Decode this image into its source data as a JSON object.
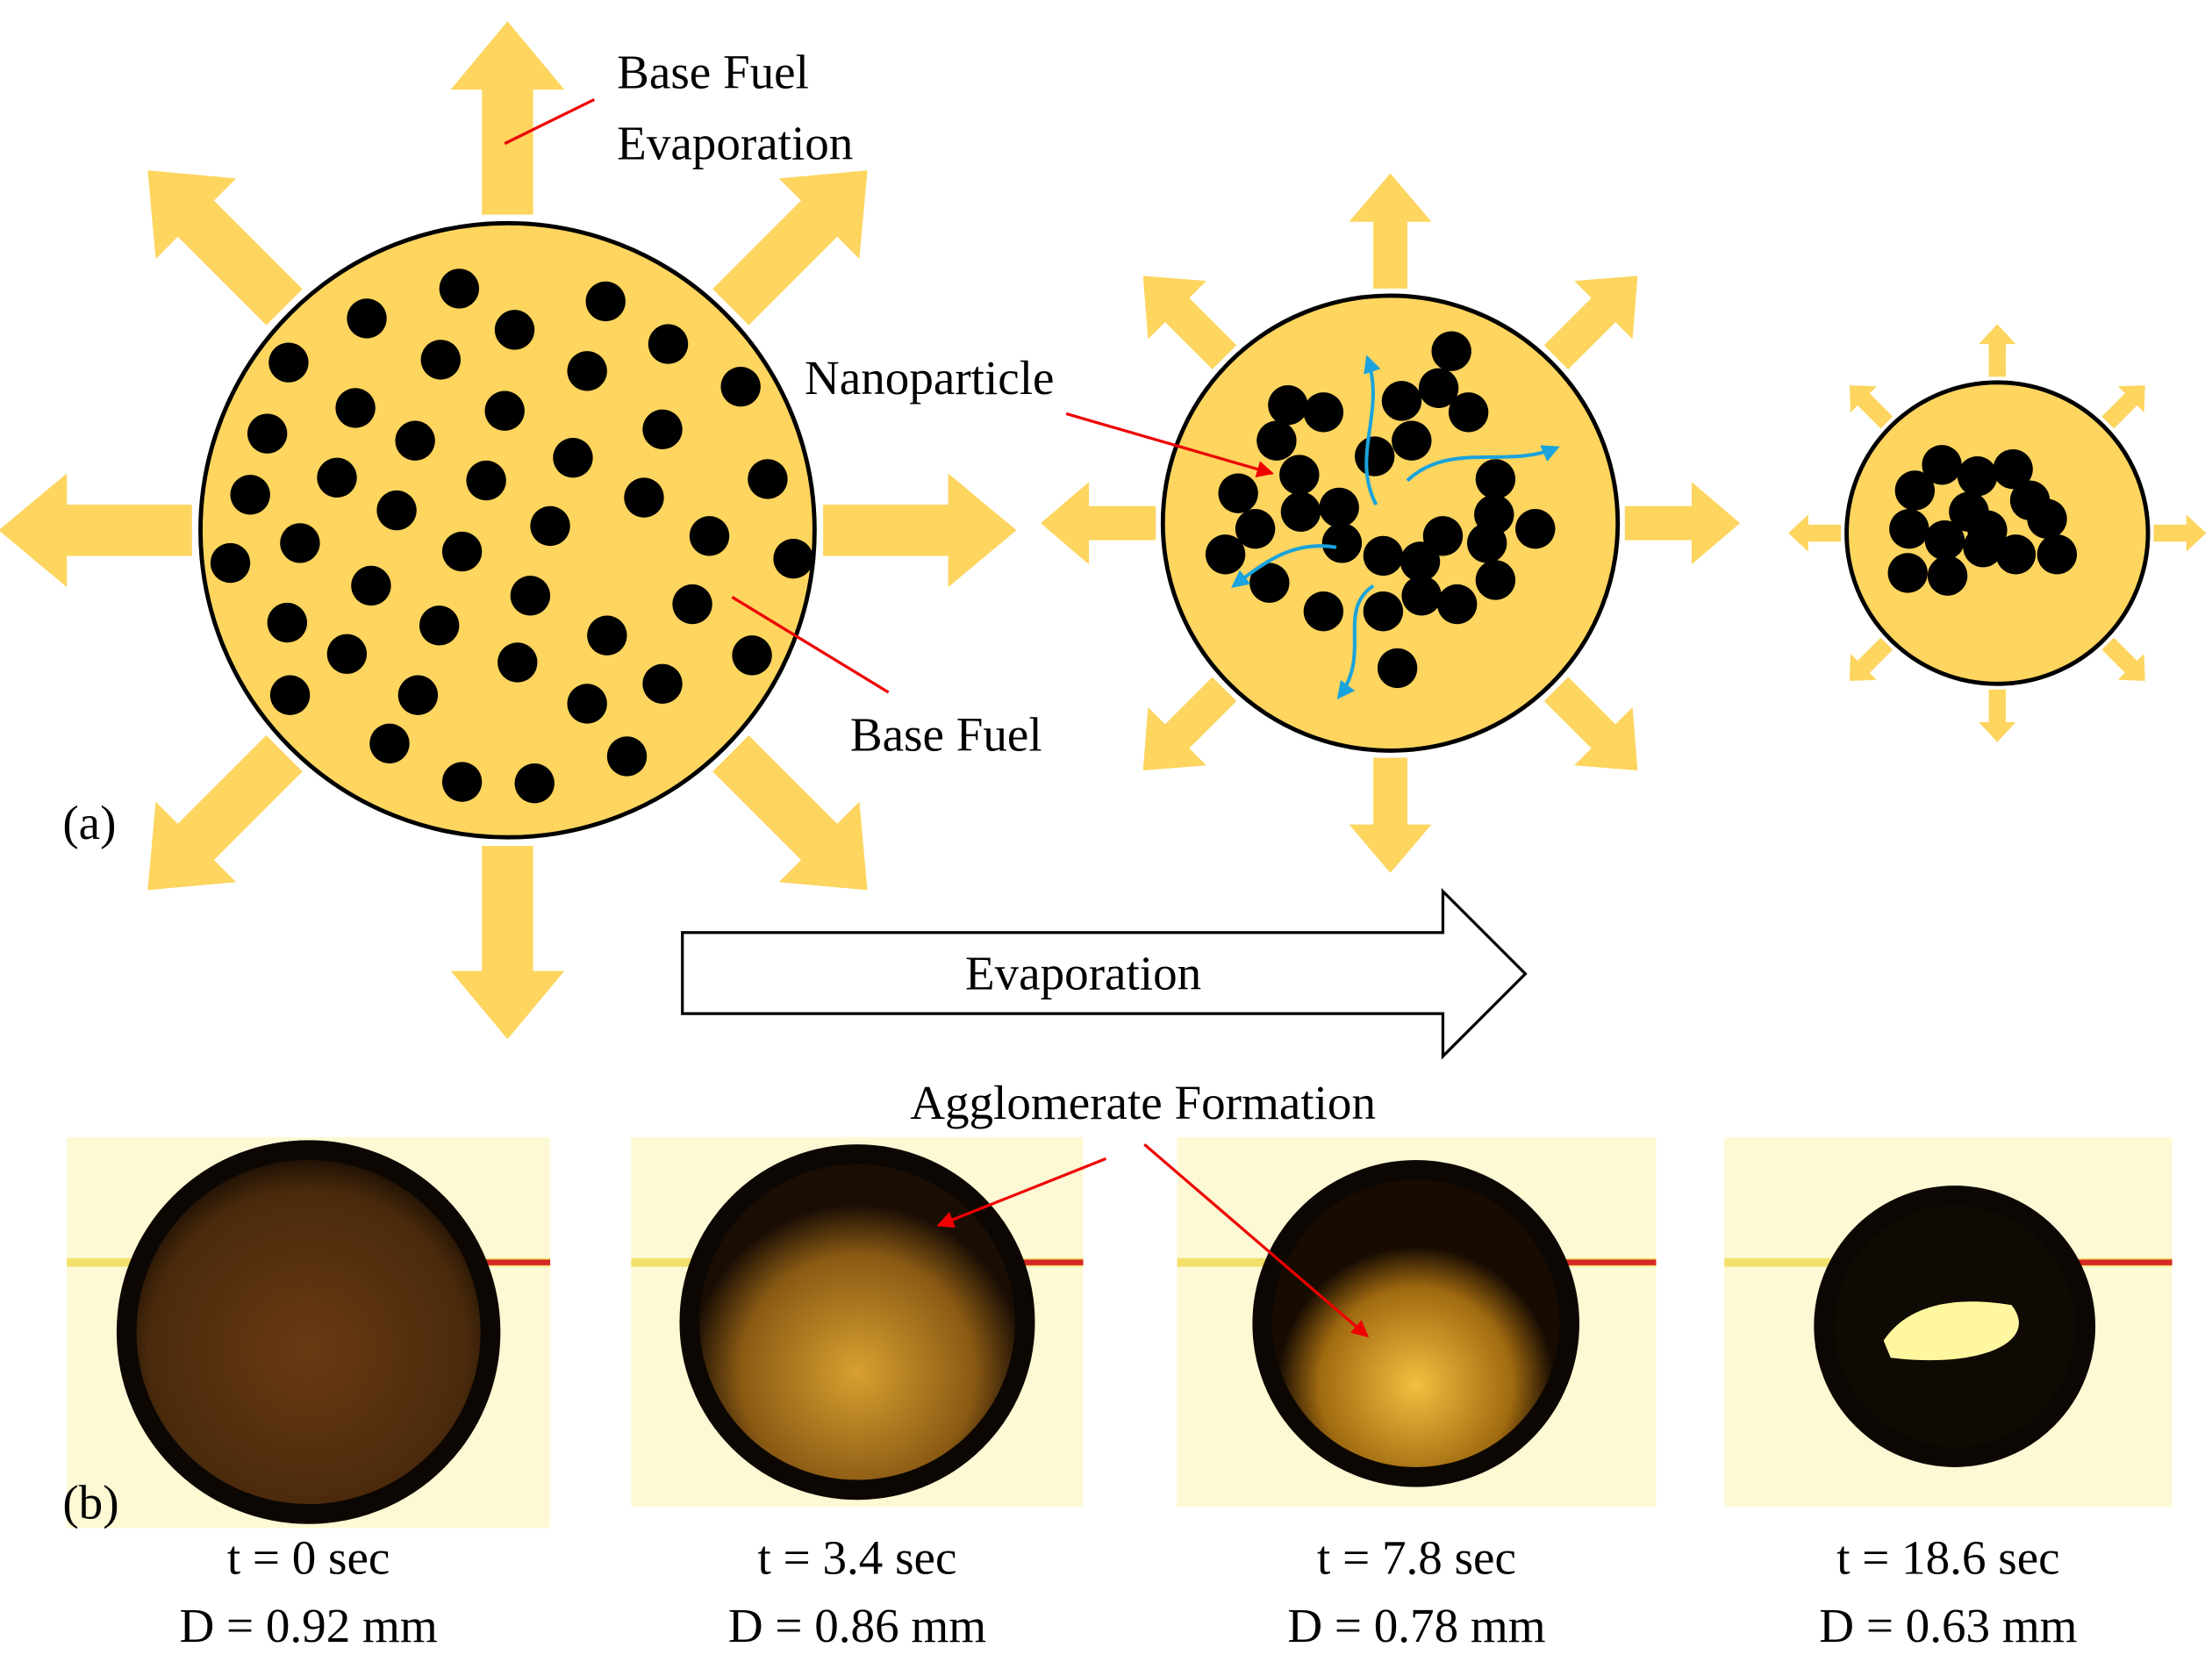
{
  "panel_a": {
    "label": "(a)",
    "annotations": {
      "evaporation_line1": "Base Fuel",
      "evaporation_line2": "Evaporation",
      "nanoparticle": "Nanoparticle",
      "base_fuel": "Base Fuel"
    },
    "process_arrow": "Evaporation"
  },
  "panel_b": {
    "label": "(b)",
    "annotation": "Agglomerate Formation",
    "frames": [
      {
        "time": "t = 0 sec",
        "diameter": "D = 0.92 mm"
      },
      {
        "time": "t = 3.4 sec",
        "diameter": "D = 0.86 mm"
      },
      {
        "time": "t = 7.8 sec",
        "diameter": "D = 0.78 mm"
      },
      {
        "time": "t = 18.6 sec",
        "diameter": "D = 0.63 mm"
      }
    ]
  }
}
